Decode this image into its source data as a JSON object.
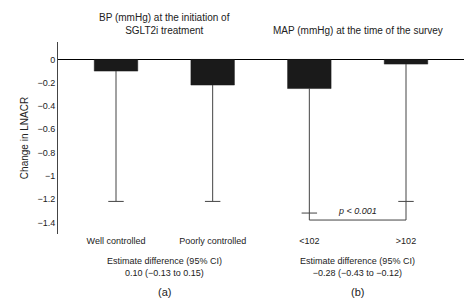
{
  "chart_data": {
    "type": "bar",
    "categories": [
      "Well controlled",
      "Poorly controlled",
      "<102",
      ">102"
    ],
    "values": [
      -0.1,
      -0.22,
      -0.25,
      -0.04
    ],
    "error_low": [
      -1.22,
      -1.22,
      -1.32,
      -1.22
    ],
    "color": "#1a1a1a",
    "ylabel": "Change in LNACR",
    "ylim": [
      -1.5,
      0.15
    ],
    "yticks": [
      0,
      {
        "value": -0.2,
        "label": "−0.2"
      },
      {
        "value": -0.4,
        "label": "−0.4"
      },
      {
        "value": -0.6,
        "label": "−0.6"
      },
      {
        "value": -0.8,
        "label": "−0.8"
      },
      {
        "value": -1.0,
        "label": "−1"
      },
      {
        "value": -1.2,
        "label": "−1.2"
      },
      {
        "value": -1.4,
        "label": "−1.4"
      }
    ],
    "grid": false,
    "groups": [
      {
        "title": "BP (mmHg) at the initiation of\nSGLT2i treatment",
        "footnote": "Estimate difference (95% CI)\n0.10 (−0.13 to 0.15)",
        "label": "(a)",
        "categories": [
          "Well controlled",
          "Poorly controlled"
        ]
      },
      {
        "title": "MAP (mmHg) at the time of the survey",
        "footnote": "Estimate difference (95% CI)\n−0.28 (−0.43 to −0.12)",
        "label": "(b)",
        "categories": [
          "<102",
          ">102"
        ]
      }
    ],
    "annotations": [
      {
        "text": "p < 0.001",
        "between": [
          "<102",
          ">102"
        ],
        "y": -1.38
      }
    ]
  }
}
